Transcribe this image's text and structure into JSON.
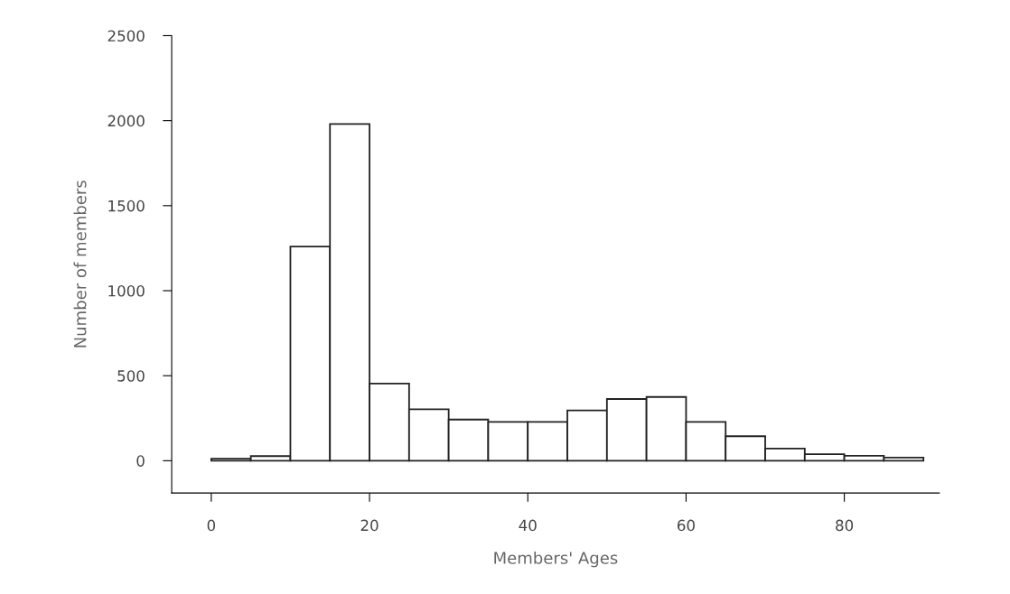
{
  "chart_data": {
    "type": "histogram",
    "xlabel": "Members' Ages",
    "ylabel": "Number of members",
    "bins": [
      0,
      5,
      10,
      15,
      20,
      25,
      30,
      35,
      40,
      45,
      50,
      55,
      60,
      65,
      70,
      75,
      80,
      85,
      90
    ],
    "values": [
      12,
      27,
      1260,
      1980,
      454,
      302,
      242,
      228,
      228,
      296,
      363,
      375,
      228,
      144,
      72,
      38,
      29,
      18
    ],
    "color": "#ffffff",
    "xlim": [
      -5,
      92
    ],
    "ylim": [
      -190,
      2500
    ],
    "xticks": [
      0,
      20,
      40,
      60,
      80
    ],
    "yticks": [
      0,
      500,
      1000,
      1500,
      2000,
      2500
    ],
    "grid": false
  }
}
